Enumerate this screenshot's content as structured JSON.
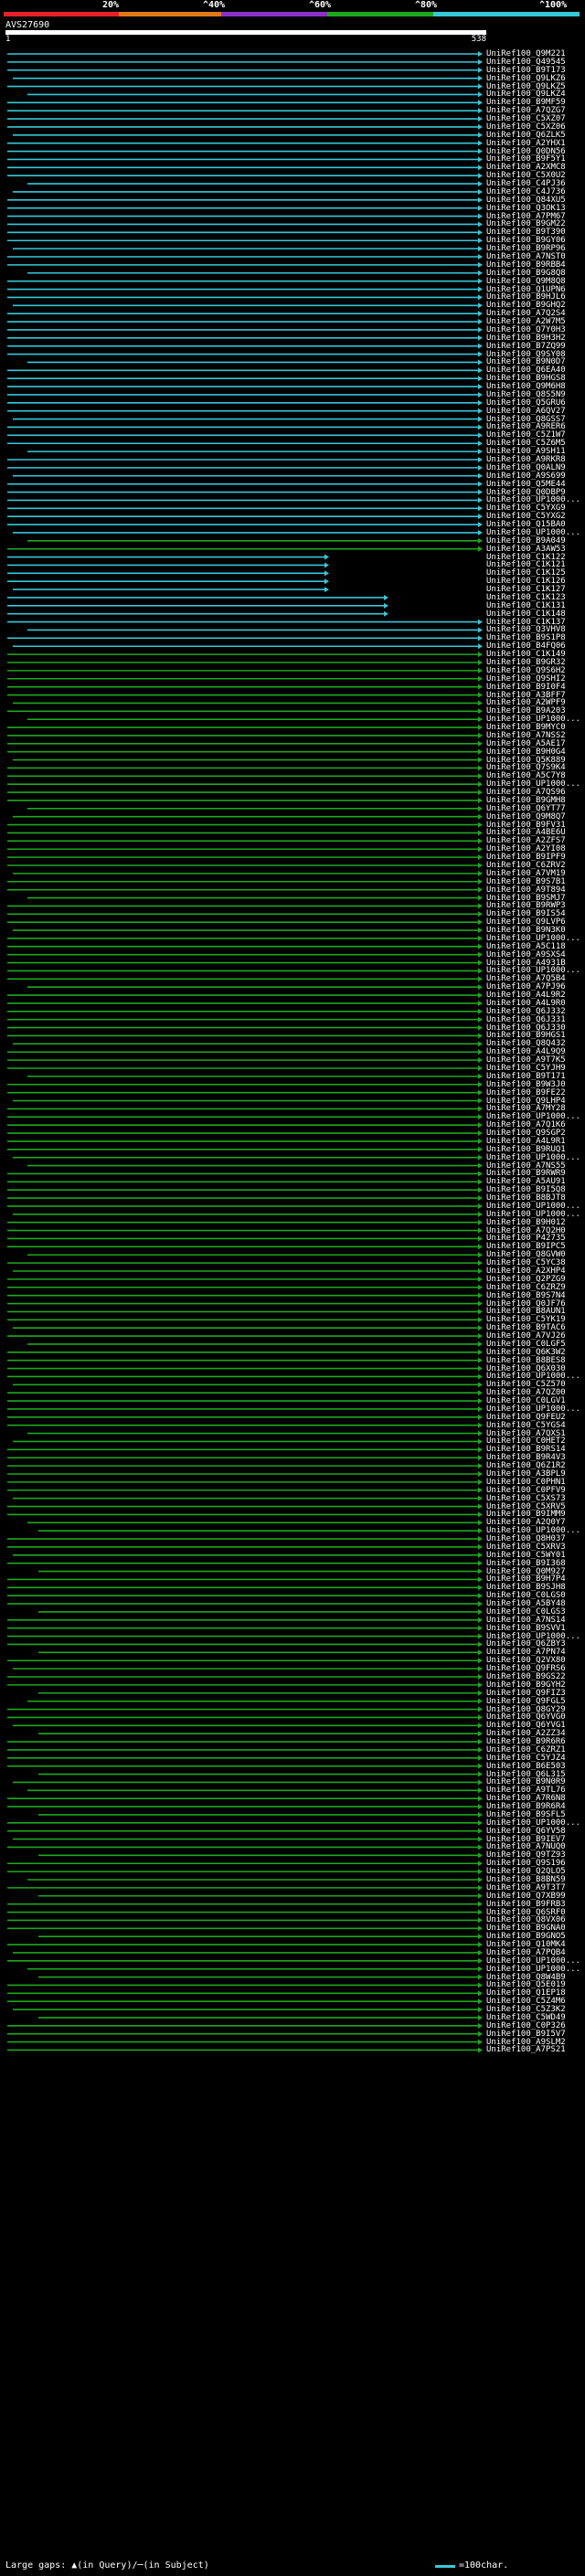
{
  "legend": {
    "labels": [
      "20%",
      "^40%",
      "^60%",
      "^80%",
      "^100%"
    ],
    "colors": [
      "#e8202a",
      "#e07818",
      "#8a32c8",
      "#1ea81e",
      "#36c8d8"
    ]
  },
  "query": {
    "name": "AVS27690",
    "start": "1",
    "end": "538"
  },
  "footer": {
    "text": "Large gaps: ▲(in Query)/─(in Subject)",
    "scale_label": "=100char."
  },
  "hits": [
    "UniRef100_Q9M221",
    "UniRef100_Q49545",
    "UniRef100_B9T173",
    "UniRef100_Q9LKZ6",
    "UniRef100_Q9LKZ5",
    "UniRef100_Q9LKZ4",
    "UniRef100_B9MF59",
    "UniRef100_A7QZG7",
    "UniRef100_C5XZ07",
    "UniRef100_C5XZ06",
    "UniRef100_Q6ZLK5",
    "UniRef100_A2YHX1",
    "UniRef100_Q0DN56",
    "UniRef100_B9F5Y1",
    "UniRef100_A2XMC8",
    "UniRef100_C5X0U2",
    "UniRef100_C4PJ36",
    "UniRef100_C4J736",
    "UniRef100_Q84XU5",
    "UniRef100_Q3OK13",
    "UniRef100_A7PM67",
    "UniRef100_B9GM22",
    "UniRef100_B9T390",
    "UniRef100_B9GY06",
    "UniRef100_B9RP96",
    "UniRef100_A7NST0",
    "UniRef100_B9RBB4",
    "UniRef100_B9G8Q8",
    "UniRef100_Q9M8Q8",
    "UniRef100_Q1UPN6",
    "UniRef100_B9HJL6",
    "UniRef100_B9GHQ2",
    "UniRef100_A7Q2S4",
    "UniRef100_A2W7M5",
    "UniRef100_Q7Y0H3",
    "UniRef100_B9H3H2",
    "UniRef100_B7ZQ99",
    "UniRef100_Q9SY08",
    "UniRef100_B9N0D7",
    "UniRef100_Q6EA40",
    "UniRef100_B9HGS8",
    "UniRef100_Q9M6H8",
    "UniRef100_Q8S5N9",
    "UniRef100_Q5GRU6",
    "UniRef100_A6QV27",
    "UniRef100_Q8GSS7",
    "UniRef100_A9RER6",
    "UniRef100_C5Z1W7",
    "UniRef100_C5Z6M5",
    "UniRef100_A9SH11",
    "UniRef100_A9RKR8",
    "UniRef100_Q0ALN9",
    "UniRef100_A9S699",
    "UniRef100_Q5ME44",
    "UniRef100_Q0DBP9",
    "UniRef100_UP1000...",
    "UniRef100_C5YXG9",
    "UniRef100_C5YXG2",
    "UniRef100_Q15BA0",
    "UniRef100_UP1000...",
    "UniRef100_B9A049",
    "UniRef100_A3AW53",
    "UniRef100_C1K122",
    "UniRef100_C1K121",
    "UniRef100_C1K125",
    "UniRef100_C1K126",
    "UniRef100_C1K127",
    "UniRef100_C1K123",
    "UniRef100_C1K131",
    "UniRef100_C1K148",
    "UniRef100_C1K137",
    "UniRef100_Q3VHV8",
    "UniRef100_B9S1P8",
    "UniRef100_B4FQ06",
    "UniRef100_C1K149",
    "UniRef100_B9GR32",
    "UniRef100_Q9S6H2",
    "UniRef100_Q9SHI2",
    "UniRef100_B9I0F4",
    "UniRef100_A3BFF7",
    "UniRef100_A2WPF9",
    "UniRef100_B9A203",
    "UniRef100_UP1000...",
    "UniRef100_B9MYC0",
    "UniRef100_A7NSS2",
    "UniRef100_A5AE17",
    "UniRef100_B9H0G4",
    "UniRef100_Q5K889",
    "UniRef100_Q7S9K4",
    "UniRef100_A5C7Y8",
    "UniRef100_UP1000...",
    "UniRef100_A7QS96",
    "UniRef100_B9GMH8",
    "UniRef100_Q6YT77",
    "UniRef100_Q9M8Q7",
    "UniRef100_B9FV31",
    "UniRef100_A4BE6U",
    "UniRef100_A2ZFS7",
    "UniRef100_A2YI08",
    "UniRef100_B9IPF9",
    "UniRef100_C6ZRV2",
    "UniRef100_A7VM19",
    "UniRef100_B9S7B1",
    "UniRef100_A9T894",
    "UniRef100_B9SMJ7",
    "UniRef100_B9RWP3",
    "UniRef100_B9IS54",
    "UniRef100_Q9LVP6",
    "UniRef100_B9N3K0",
    "UniRef100_UP1000...",
    "UniRef100_A5C118",
    "UniRef100_A9SXS4",
    "UniRef100_A4931B",
    "UniRef100_UP1000...",
    "UniRef100_A7Q5B4",
    "UniRef100_A7PJ96",
    "UniRef100_A4L9R2",
    "UniRef100_A4L9R0",
    "UniRef100_Q6J332",
    "UniRef100_Q6J331",
    "UniRef100_Q6J330",
    "UniRef100_B9HGS1",
    "UniRef100_Q8Q432",
    "UniRef100_A4L9Q9",
    "UniRef100_A9T7K5",
    "UniRef100_C5YJH9",
    "UniRef100_B9T171",
    "UniRef100_B9W3J0",
    "UniRef100_B9FE22",
    "UniRef100_Q9LHP4",
    "UniRef100_A7MY28",
    "UniRef100_UP1000...",
    "UniRef100_A7Q1K6",
    "UniRef100_Q9SGP2",
    "UniRef100_A4L9R1",
    "UniRef100_B9RUQ1",
    "UniRef100_UP1000...",
    "UniRef100_A7NS55",
    "UniRef100_B9RWR9",
    "UniRef100_A5AU91",
    "UniRef100_B9I5Q8",
    "UniRef100_B8BJT8",
    "UniRef100_UP1000...",
    "UniRef100_UP1000...",
    "UniRef100_B9H012",
    "UniRef100_A7Q2H0",
    "UniRef100_P42735",
    "UniRef100_B9IPC5",
    "UniRef100_Q8GVW0",
    "UniRef100_C5YC38",
    "UniRef100_A2XHP4",
    "UniRef100_Q2PZG9",
    "UniRef100_C6ZRZ9",
    "UniRef100_B9S7N4",
    "UniRef100_Q0JF76",
    "UniRef100_B8AUN1",
    "UniRef100_C5YK19",
    "UniRef100_B9TAC6",
    "UniRef100_A7VJ26",
    "UniRef100_C0LGF5",
    "UniRef100_Q6K3W2",
    "UniRef100_B8BES8",
    "UniRef100_Q6X030",
    "UniRef100_UP1000...",
    "UniRef100_C5Z570",
    "UniRef100_A7QZ00",
    "UniRef100_C0LGV1",
    "UniRef100_UP1000...",
    "UniRef100_Q9FEU2",
    "UniRef100_C5YGS4",
    "UniRef100_A7QXS1",
    "UniRef100_C0HET2",
    "UniRef100_B9RS14",
    "UniRef100_B9R4V3",
    "UniRef100_Q6Z1R2",
    "UniRef100_A3BPL9",
    "UniRef100_C0PHN1",
    "UniRef100_C0PFV9",
    "UniRef100_C5XS73",
    "UniRef100_C5XRV5",
    "UniRef100_B9IMM9",
    "UniRef100_A2Q0Y7",
    "UniRef100_UP1000...",
    "UniRef100_Q8H037",
    "UniRef100_C5XRV3",
    "UniRef100_C5WY01",
    "UniRef100_B9I368",
    "UniRef100_Q0M927",
    "UniRef100_B9H7P4",
    "UniRef100_B9SJH8",
    "UniRef100_C0LGS0",
    "UniRef100_A5BY48",
    "UniRef100_C0LGS3",
    "UniRef100_A7NS14",
    "UniRef100_B9SVV1",
    "UniRef100_UP1000...",
    "UniRef100_Q6ZBY3",
    "UniRef100_A7PN74",
    "UniRef100_Q2VX80",
    "UniRef100_Q9FRS6",
    "UniRef100_B9GS22",
    "UniRef100_B9GYH2",
    "UniRef100_Q9FIZ3",
    "UniRef100_Q9FGL5",
    "UniRef100_Q8GY29",
    "UniRef100_Q6YVG0",
    "UniRef100_Q6YVG1",
    "UniRef100_A2ZZ34",
    "UniRef100_B9R6R6",
    "UniRef100_C6ZRZ1",
    "UniRef100_C5YJZ4",
    "UniRef100_B6E503",
    "UniRef100_Q6L315",
    "UniRef100_B9N0R9",
    "UniRef100_A9TL76",
    "UniRef100_A7R6N8",
    "UniRef100_B9R6R4",
    "UniRef100_B9SFL5",
    "UniRef100_UP1000...",
    "UniRef100_Q6YV58",
    "UniRef100_B9IEV7",
    "UniRef100_A7NUQ0",
    "UniRef100_Q9TZ93",
    "UniRef100_Q9S196",
    "UniRef100_Q2QLO5",
    "UniRef100_B8BN59",
    "UniRef100_A9T3T7",
    "UniRef100_Q7XB99",
    "UniRef100_B9FRB3",
    "UniRef100_Q6SRF0",
    "UniRef100_Q8VX06",
    "UniRef100_B9GNA0",
    "UniRef100_B9GNO5",
    "UniRef100_Q10MK4",
    "UniRef100_A7PQB4",
    "UniRef100_UP1000...",
    "UniRef100_UP1000...",
    "UniRef100_Q8W4B9",
    "UniRef100_Q5E019",
    "UniRef100_Q1EP18",
    "UniRef100_C5Z4M6",
    "UniRef100_C5Z3K2",
    "UniRef100_C5WD49",
    "UniRef100_C0P326",
    "UniRef100_B9I5V7",
    "UniRef100_A9SLM2",
    "UniRef100_A7PS21"
  ]
}
